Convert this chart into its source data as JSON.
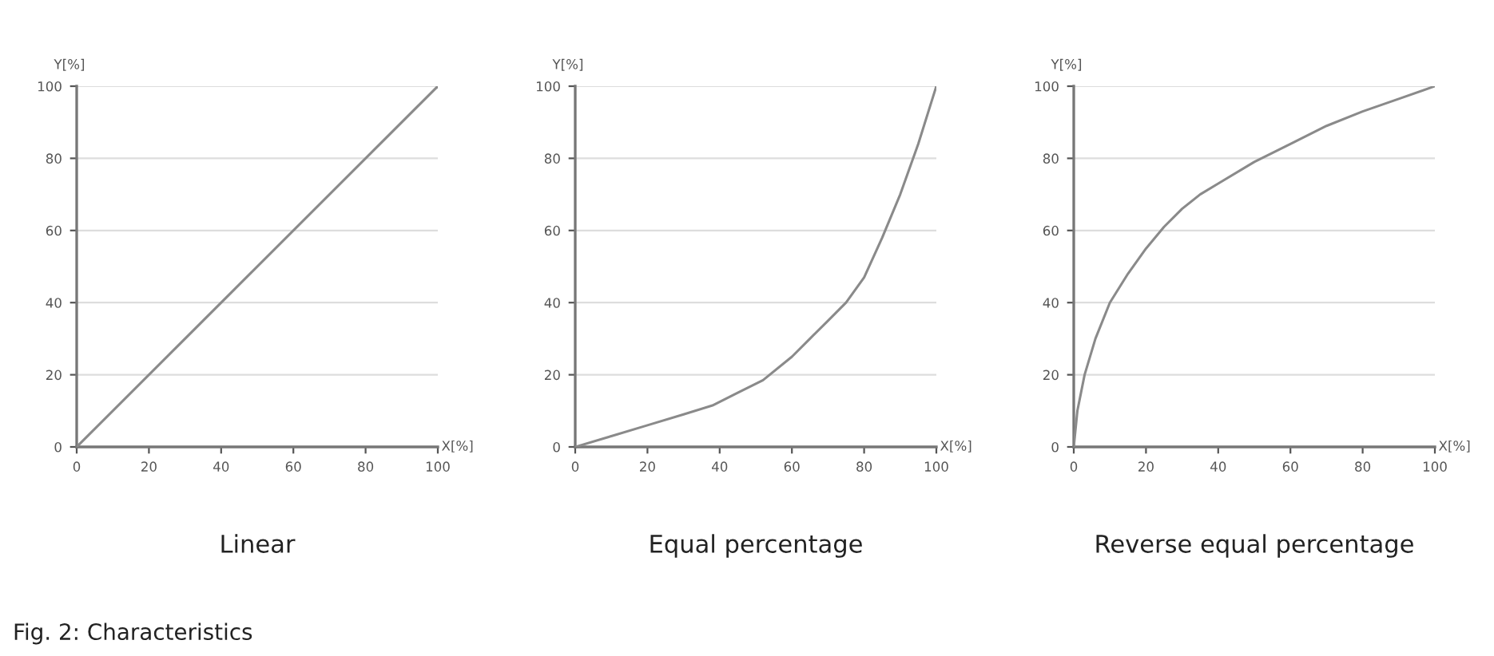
{
  "chart_data": [
    {
      "type": "line",
      "title": "Linear",
      "xlabel": "X[%]",
      "ylabel": "Y[%]",
      "annotations": [
        "Fig. 2: Characteristics"
      ],
      "series": [
        {
          "color": "#8a8a8a",
          "x": [
            0,
            100
          ],
          "values": [
            0,
            100
          ]
        }
      ],
      "xlim": [
        0,
        100
      ],
      "ylim": [
        0,
        100
      ],
      "xticks": [
        0,
        20,
        40,
        60,
        80,
        100
      ],
      "yticks": [
        0,
        20,
        40,
        60,
        80,
        100
      ],
      "grid": "y",
      "marker": "none",
      "line_style": "solid"
    },
    {
      "type": "line",
      "title": "Equal percentage",
      "xlabel": "X[%]",
      "ylabel": "Y[%]",
      "series": [
        {
          "color": "#8a8a8a",
          "x": [
            0,
            10,
            20,
            30,
            38,
            45,
            52,
            60,
            65,
            70,
            75,
            80,
            85,
            90,
            95,
            100
          ],
          "values": [
            0,
            3,
            6,
            9,
            11.5,
            15,
            18.5,
            25,
            30,
            35,
            40,
            47,
            58,
            70,
            84,
            100
          ]
        }
      ],
      "xlim": [
        0,
        100
      ],
      "ylim": [
        0,
        100
      ],
      "xticks": [
        0,
        20,
        40,
        60,
        80,
        100
      ],
      "yticks": [
        0,
        20,
        40,
        60,
        80,
        100
      ],
      "grid": "y",
      "marker": "none",
      "line_style": "solid"
    },
    {
      "type": "line",
      "title": "Reverse equal percentage",
      "xlabel": "X[%]",
      "ylabel": "Y[%]",
      "series": [
        {
          "color": "#8a8a8a",
          "x": [
            0,
            1,
            3,
            6,
            10,
            15,
            20,
            25,
            30,
            35,
            40,
            50,
            60,
            70,
            80,
            90,
            100
          ],
          "values": [
            0,
            10,
            20,
            30,
            40,
            48,
            55,
            61,
            66,
            70,
            73,
            79,
            84,
            89,
            93,
            96.5,
            100
          ]
        }
      ],
      "xlim": [
        0,
        100
      ],
      "ylim": [
        0,
        100
      ],
      "xticks": [
        0,
        20,
        40,
        60,
        80,
        100
      ],
      "yticks": [
        0,
        20,
        40,
        60,
        80,
        100
      ],
      "grid": "y",
      "marker": "none",
      "line_style": "solid"
    }
  ]
}
